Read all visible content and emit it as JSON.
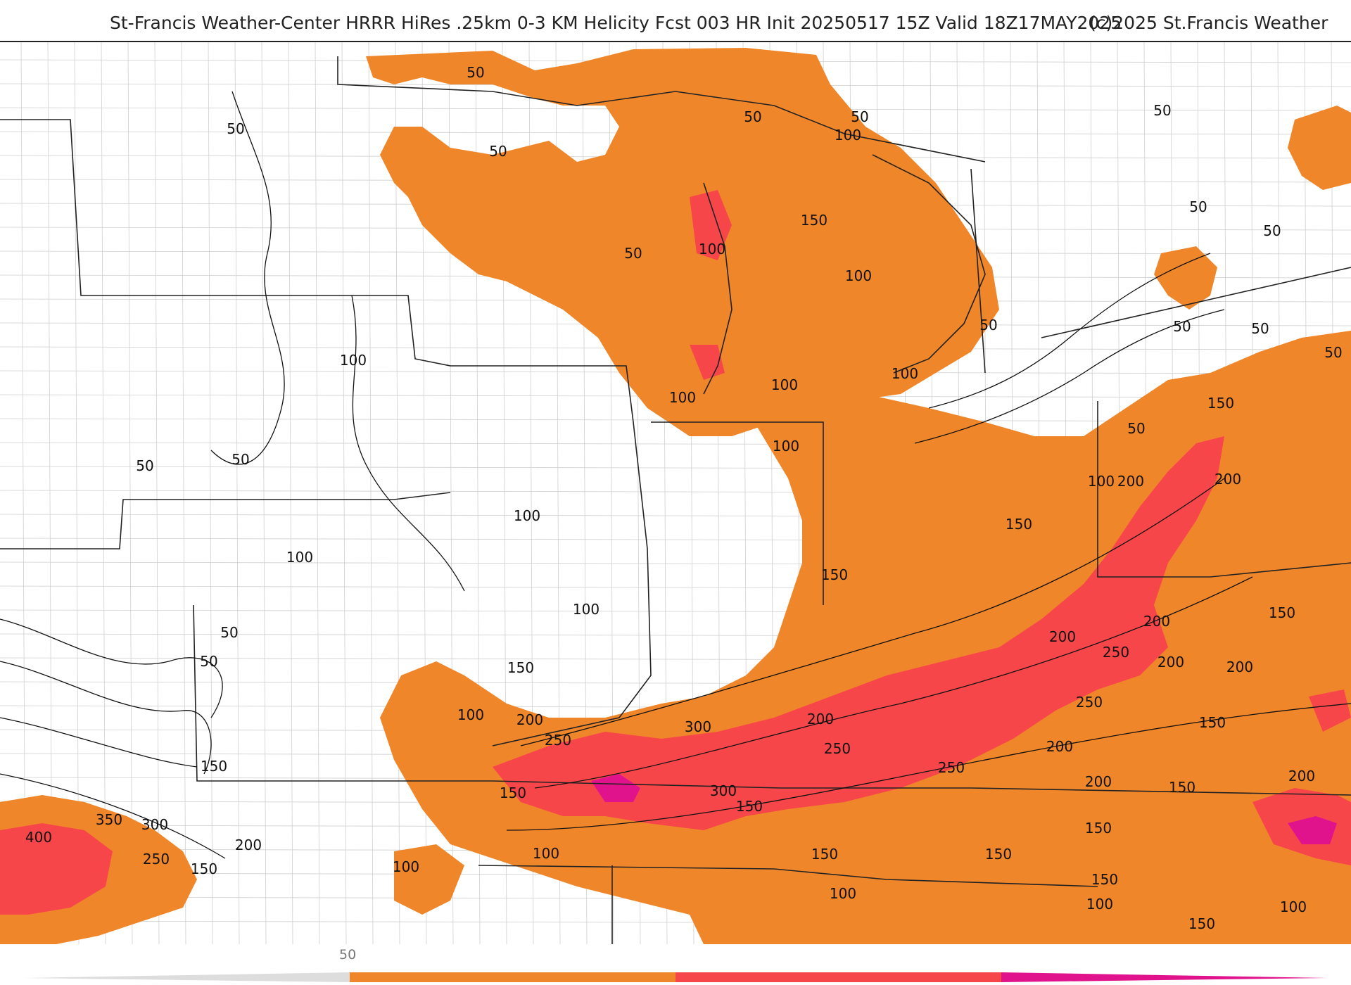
{
  "header": {
    "title": "St-Francis Weather-Center HRRR HiRes .25km 0-3 KM Helicity Fcst 003 HR Init 20250517 15Z  Valid 18Z17MAY2025",
    "copyright": "(c)2025 St.Francis Weather"
  },
  "colors": {
    "band_50": "#f0862a",
    "band_200": "#f7464a",
    "band_400": "#e0138c",
    "land": "#ffffff",
    "boundary": "#222222",
    "county": "#c8c8c8"
  },
  "legend": {
    "first_label": "50"
  },
  "contour_labels": [
    {
      "text": "50"
    },
    {
      "text": "50"
    },
    {
      "text": "50"
    },
    {
      "text": "50"
    },
    {
      "text": "50"
    },
    {
      "text": "50"
    },
    {
      "text": "50"
    },
    {
      "text": "50"
    },
    {
      "text": "50"
    },
    {
      "text": "50"
    },
    {
      "text": "50"
    },
    {
      "text": "50"
    },
    {
      "text": "50"
    },
    {
      "text": "50"
    },
    {
      "text": "50"
    },
    {
      "text": "50"
    },
    {
      "text": "50"
    },
    {
      "text": "50"
    },
    {
      "text": "100"
    },
    {
      "text": "100"
    },
    {
      "text": "100"
    },
    {
      "text": "100"
    },
    {
      "text": "100"
    },
    {
      "text": "100"
    },
    {
      "text": "100"
    },
    {
      "text": "100"
    },
    {
      "text": "100"
    },
    {
      "text": "100"
    },
    {
      "text": "100"
    },
    {
      "text": "100"
    },
    {
      "text": "100"
    },
    {
      "text": "100"
    },
    {
      "text": "100"
    },
    {
      "text": "100"
    },
    {
      "text": "100"
    },
    {
      "text": "100"
    },
    {
      "text": "150"
    },
    {
      "text": "150"
    },
    {
      "text": "150"
    },
    {
      "text": "150"
    },
    {
      "text": "150"
    },
    {
      "text": "150"
    },
    {
      "text": "150"
    },
    {
      "text": "150"
    },
    {
      "text": "150"
    },
    {
      "text": "150"
    },
    {
      "text": "150"
    },
    {
      "text": "150"
    },
    {
      "text": "150"
    },
    {
      "text": "150"
    },
    {
      "text": "150"
    },
    {
      "text": "150"
    },
    {
      "text": "150"
    },
    {
      "text": "200"
    },
    {
      "text": "200"
    },
    {
      "text": "200"
    },
    {
      "text": "200"
    },
    {
      "text": "200"
    },
    {
      "text": "200"
    },
    {
      "text": "200"
    },
    {
      "text": "200"
    },
    {
      "text": "200"
    },
    {
      "text": "200"
    },
    {
      "text": "200"
    },
    {
      "text": "200"
    },
    {
      "text": "250"
    },
    {
      "text": "250"
    },
    {
      "text": "250"
    },
    {
      "text": "250"
    },
    {
      "text": "250"
    },
    {
      "text": "250"
    },
    {
      "text": "300"
    },
    {
      "text": "300"
    },
    {
      "text": "300"
    },
    {
      "text": "350"
    },
    {
      "text": "400"
    }
  ]
}
